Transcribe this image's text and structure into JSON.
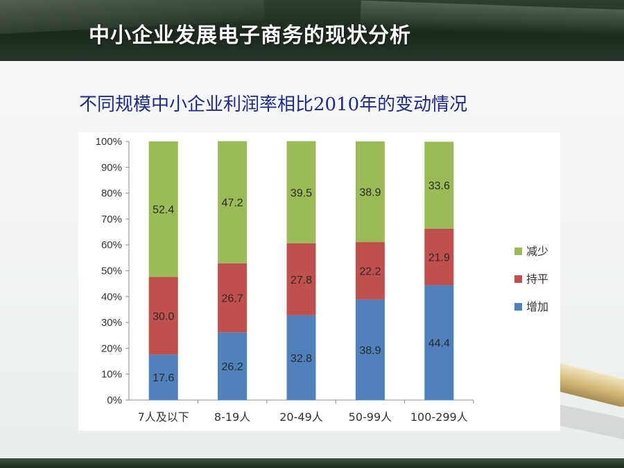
{
  "header": {
    "title": "中小企业发展电子商务的现状分析"
  },
  "slide_title": "不同规模中小企业利润率相比2010年的变动情况",
  "chart_data": {
    "type": "bar",
    "stacked": true,
    "categories": [
      "7人及以下",
      "8-19人",
      "20-49人",
      "50-99人",
      "100-299人"
    ],
    "series": [
      {
        "name": "增加",
        "color": "#4f81bd",
        "values": [
          17.6,
          26.2,
          32.8,
          38.9,
          44.4
        ]
      },
      {
        "name": "持平",
        "color": "#c0504d",
        "values": [
          30.0,
          26.7,
          27.8,
          22.2,
          21.9
        ]
      },
      {
        "name": "减少",
        "color": "#9bbb59",
        "values": [
          52.4,
          47.2,
          39.5,
          38.9,
          33.6
        ]
      }
    ],
    "yticks": [
      "0%",
      "10%",
      "20%",
      "30%",
      "40%",
      "50%",
      "60%",
      "70%",
      "80%",
      "90%",
      "100%"
    ],
    "ylim": [
      0,
      100
    ],
    "legend_position": "right",
    "legend_order": [
      "减少",
      "持平",
      "增加"
    ]
  }
}
